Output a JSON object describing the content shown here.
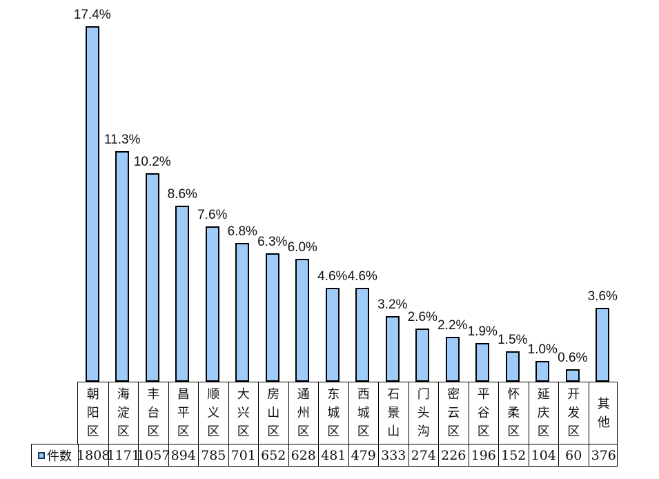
{
  "chart_data": {
    "type": "bar",
    "title": "",
    "xlabel": "",
    "ylabel": "",
    "grid": false,
    "legend_position": "bottom-table-left",
    "categories": [
      "朝阳区",
      "海淀区",
      "丰台区",
      "昌平区",
      "顺义区",
      "大兴区",
      "房山区",
      "通州区",
      "东城区",
      "西城区",
      "石景山",
      "门头沟",
      "密云区",
      "平谷区",
      "怀柔区",
      "延庆区",
      "开发区",
      "其他"
    ],
    "series": [
      {
        "name": "件数",
        "values": [
          1808,
          1171,
          1057,
          894,
          785,
          701,
          652,
          628,
          481,
          479,
          333,
          274,
          226,
          196,
          152,
          104,
          60,
          376
        ]
      }
    ],
    "percent_values": [
      17.4,
      11.3,
      10.2,
      8.6,
      7.6,
      6.8,
      6.3,
      6.0,
      4.6,
      4.6,
      3.2,
      2.6,
      2.2,
      1.9,
      1.5,
      1.0,
      0.6,
      3.6
    ],
    "percent_labels": [
      "17.4%",
      "11.3%",
      "10.2%",
      "8.6%",
      "7.6%",
      "6.8%",
      "6.3%",
      "6.0%",
      "4.6%",
      "4.6%",
      "3.2%",
      "2.6%",
      "2.2%",
      "1.9%",
      "1.5%",
      "1.0%",
      "0.6%",
      "3.6%"
    ],
    "colors": {
      "bar_fill": "#9ECBF8",
      "bar_border": "#000000",
      "table_border": "#000000",
      "legend_swatch_fill": "#9ECBF8",
      "legend_swatch_border": "#17375E"
    }
  }
}
